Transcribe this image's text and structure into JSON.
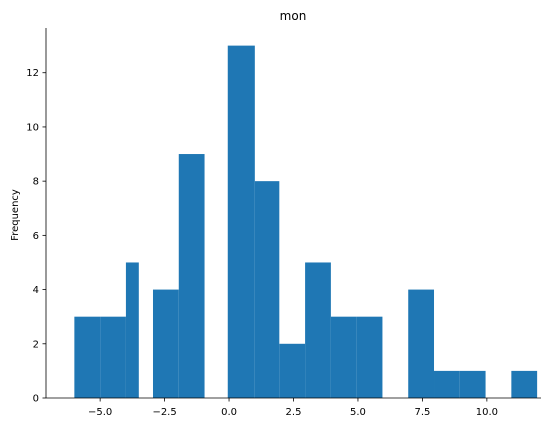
{
  "chart_data": {
    "type": "bar",
    "title": "mon",
    "xlabel": "",
    "ylabel": "Frequency",
    "bar_color": "#1f77b4",
    "xlim": [
      -7.1,
      12.1
    ],
    "ylim": [
      0,
      13.65
    ],
    "grid": false,
    "bins": [
      {
        "x0": -6.0,
        "x1": -5.0,
        "count": 3
      },
      {
        "x0": -5.0,
        "x1": -4.0,
        "count": 3
      },
      {
        "x0": -4.0,
        "x1": -3.5,
        "count": 5
      },
      {
        "x0": -3.5,
        "x1": -2.95,
        "count": 0
      },
      {
        "x0": -2.95,
        "x1": -1.95,
        "count": 4
      },
      {
        "x0": -1.95,
        "x1": -0.95,
        "count": 9
      },
      {
        "x0": -0.95,
        "x1": -0.05,
        "count": 0
      },
      {
        "x0": -0.05,
        "x1": 1.0,
        "count": 13
      },
      {
        "x0": 1.0,
        "x1": 1.95,
        "count": 8
      },
      {
        "x0": 1.95,
        "x1": 2.95,
        "count": 2
      },
      {
        "x0": 2.95,
        "x1": 3.95,
        "count": 5
      },
      {
        "x0": 3.95,
        "x1": 4.95,
        "count": 3
      },
      {
        "x0": 4.95,
        "x1": 5.95,
        "count": 3
      },
      {
        "x0": 5.95,
        "x1": 6.95,
        "count": 0
      },
      {
        "x0": 6.95,
        "x1": 7.95,
        "count": 4
      },
      {
        "x0": 7.95,
        "x1": 8.95,
        "count": 1
      },
      {
        "x0": 8.95,
        "x1": 9.95,
        "count": 1
      },
      {
        "x0": 9.95,
        "x1": 10.95,
        "count": 0
      },
      {
        "x0": 10.95,
        "x1": 11.95,
        "count": 1
      }
    ],
    "x_ticks": [
      {
        "value": -5.0,
        "label": "−5.0"
      },
      {
        "value": -2.5,
        "label": "−2.5"
      },
      {
        "value": 0.0,
        "label": "0.0"
      },
      {
        "value": 2.5,
        "label": "2.5"
      },
      {
        "value": 5.0,
        "label": "5.0"
      },
      {
        "value": 7.5,
        "label": "7.5"
      },
      {
        "value": 10.0,
        "label": "10.0"
      }
    ],
    "y_ticks": [
      {
        "value": 0,
        "label": "0"
      },
      {
        "value": 2,
        "label": "2"
      },
      {
        "value": 4,
        "label": "4"
      },
      {
        "value": 6,
        "label": "6"
      },
      {
        "value": 8,
        "label": "8"
      },
      {
        "value": 10,
        "label": "10"
      },
      {
        "value": 12,
        "label": "12"
      }
    ]
  }
}
